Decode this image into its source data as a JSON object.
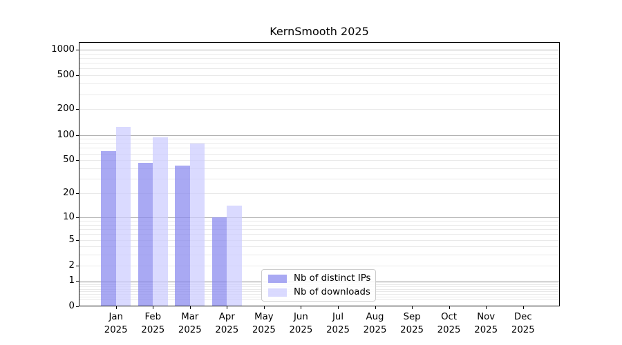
{
  "chart_data": {
    "type": "bar",
    "title": "KernSmooth 2025",
    "year": "2025",
    "months": [
      "Jan",
      "Feb",
      "Mar",
      "Apr",
      "May",
      "Jun",
      "Jul",
      "Aug",
      "Sep",
      "Oct",
      "Nov",
      "Dec"
    ],
    "series": [
      {
        "name": "Nb of distinct IPs",
        "color": "#8888ee",
        "opacity": 0.72,
        "values": [
          64,
          47,
          43,
          10,
          0,
          0,
          0,
          0,
          0,
          0,
          0,
          0
        ]
      },
      {
        "name": "Nb of downloads",
        "color": "#ccccff",
        "opacity": 0.72,
        "values": [
          123,
          93,
          79,
          14,
          0,
          0,
          0,
          0,
          0,
          0,
          0,
          0
        ]
      }
    ],
    "yscale": "log1p",
    "yticks": [
      0,
      1,
      2,
      5,
      10,
      20,
      50,
      100,
      200,
      500,
      1000
    ],
    "ylim": [
      0,
      1250
    ],
    "xlabel": "",
    "ylabel": "",
    "grid": "horizontal, major at powers of 10, faint minors",
    "legend_position": "inside bottom-center"
  },
  "colors": {
    "background": "#ffffff",
    "major_grid": "#b0b0b0",
    "minor_grid": "#e9e9e9",
    "axis": "#000000",
    "text": "#000000",
    "legend_border": "#cccccc"
  }
}
